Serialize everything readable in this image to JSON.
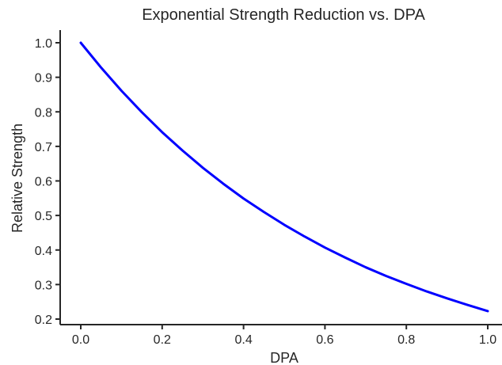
{
  "chart_data": {
    "type": "line",
    "title": "Exponential Strength Reduction vs. DPA",
    "xlabel": "DPA",
    "ylabel": "Relative Strength",
    "xlim": [
      -0.05,
      1.0
    ],
    "ylim": [
      0.19,
      1.04
    ],
    "grid": false,
    "legend": "none",
    "x_ticks": [
      0.0,
      0.2,
      0.4,
      0.6,
      0.8,
      1.0
    ],
    "x_tick_labels": [
      "0.0",
      "0.2",
      "0.4",
      "0.6",
      "0.8",
      "1.0"
    ],
    "y_ticks": [
      0.2,
      0.3,
      0.4,
      0.5,
      0.6,
      0.7,
      0.8,
      0.9,
      1.0
    ],
    "y_tick_labels": [
      "0.2",
      "0.3",
      "0.4",
      "0.5",
      "0.6",
      "0.7",
      "0.8",
      "0.9",
      "1.0"
    ],
    "series": [
      {
        "color": "#0000ff",
        "x": [
          0.0,
          0.05,
          0.1,
          0.15,
          0.2,
          0.25,
          0.3,
          0.35,
          0.4,
          0.45,
          0.5,
          0.55,
          0.6,
          0.65,
          0.7,
          0.75,
          0.8,
          0.85,
          0.9,
          0.95,
          1.0
        ],
        "y": [
          1.0,
          0.928,
          0.861,
          0.799,
          0.741,
          0.688,
          0.638,
          0.592,
          0.549,
          0.51,
          0.473,
          0.439,
          0.407,
          0.378,
          0.35,
          0.325,
          0.302,
          0.28,
          0.26,
          0.241,
          0.223
        ]
      }
    ]
  }
}
